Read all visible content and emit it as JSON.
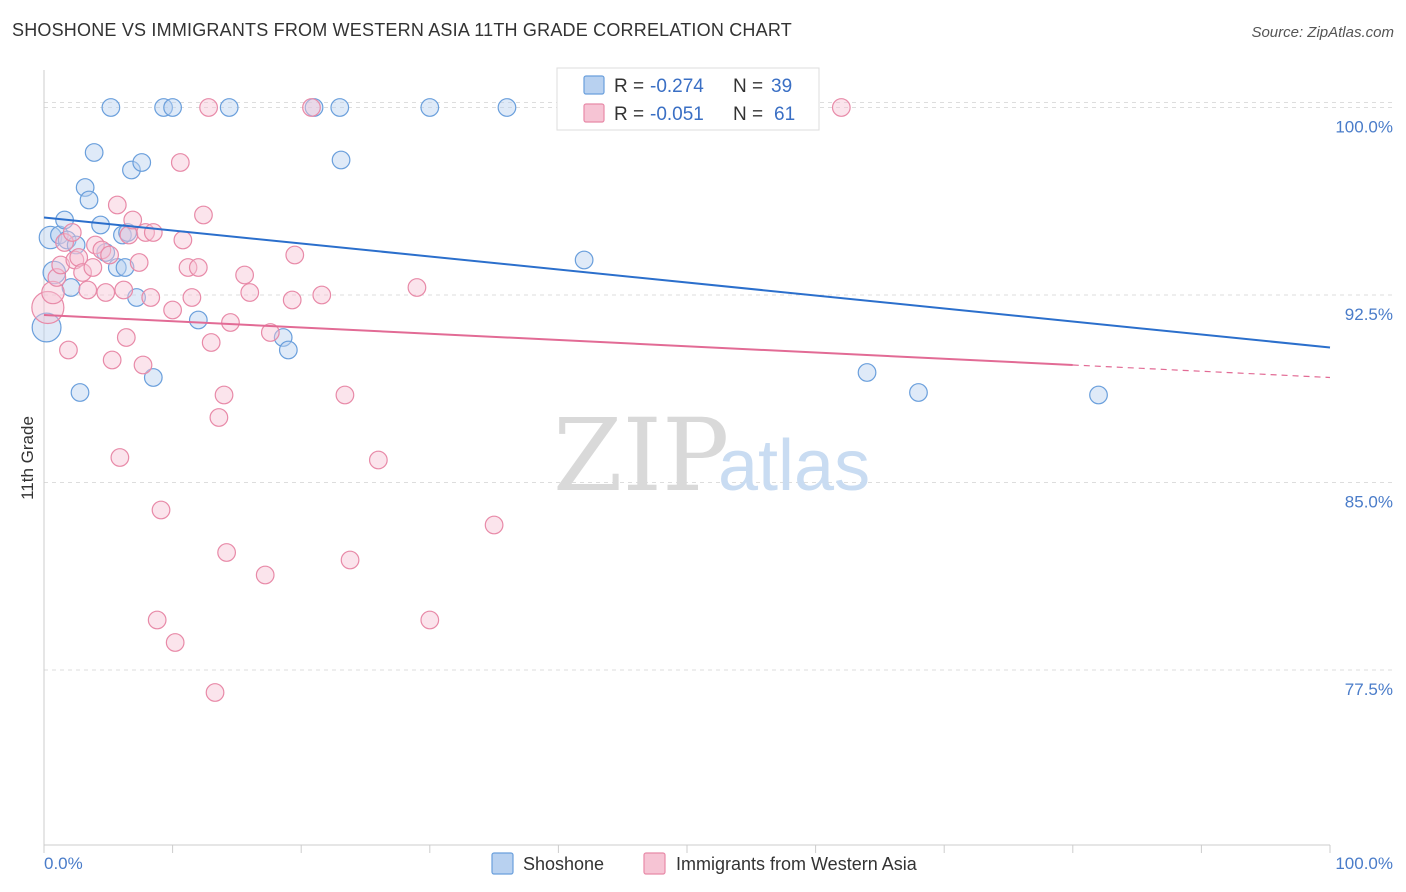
{
  "title": "SHOSHONE VS IMMIGRANTS FROM WESTERN ASIA 11TH GRADE CORRELATION CHART",
  "source": "Source: ZipAtlas.com",
  "watermark": {
    "zip": "ZIP",
    "atlas": "atlas"
  },
  "colors": {
    "blue": "#6a9fdc",
    "blue_fill": "#b8d1f0",
    "blue_line": "#2b6fcc",
    "pink": "#e88aa8",
    "pink_fill": "#f6c4d4",
    "pink_line": "#e26b95",
    "axis_text": "#4a7cc9",
    "grid": "#dddddd"
  },
  "legend": {
    "rows": [
      {
        "r_label": "R =",
        "r_value": "-0.274",
        "n_label": "N =",
        "n_value": "39"
      },
      {
        "r_label": "R =",
        "r_value": "-0.051",
        "n_label": "N =",
        "n_value": "61"
      }
    ]
  },
  "chart_data": {
    "type": "scatter",
    "title": "SHOSHONE VS IMMIGRANTS FROM WESTERN ASIA 11TH GRADE CORRELATION CHART",
    "xlabel": "",
    "ylabel": "11th Grade",
    "xlim": [
      0,
      100
    ],
    "ylim": [
      70.5,
      101.5
    ],
    "x_ticks": [
      "0.0%",
      "100.0%"
    ],
    "y_ticks": [
      {
        "value": 100.0,
        "label": "100.0%"
      },
      {
        "value": 92.5,
        "label": "92.5%"
      },
      {
        "value": 85.0,
        "label": "85.0%"
      },
      {
        "value": 77.5,
        "label": "77.5%"
      }
    ],
    "grid": true,
    "legend_position": "top-center",
    "series": [
      {
        "name": "Shoshone",
        "color": "#6a9fdc",
        "trend": {
          "x0": 0,
          "y0": 95.6,
          "x1": 100,
          "y1": 90.4
        },
        "points": [
          [
            0.2,
            91.2,
            18
          ],
          [
            0.5,
            94.8,
            14
          ],
          [
            0.8,
            93.4,
            14
          ],
          [
            1.2,
            94.9,
            11
          ],
          [
            1.6,
            95.5,
            11
          ],
          [
            1.8,
            94.7,
            11
          ],
          [
            2.1,
            92.8,
            11
          ],
          [
            2.5,
            94.5,
            11
          ],
          [
            2.8,
            88.6,
            11
          ],
          [
            3.2,
            96.8,
            11
          ],
          [
            3.5,
            96.3,
            11
          ],
          [
            3.9,
            98.2,
            11
          ],
          [
            4.4,
            95.3,
            11
          ],
          [
            4.8,
            94.2,
            11
          ],
          [
            5.2,
            100.0,
            11
          ],
          [
            5.7,
            93.6,
            11
          ],
          [
            6.1,
            94.9,
            11
          ],
          [
            6.3,
            93.6,
            11
          ],
          [
            6.5,
            95.0,
            11
          ],
          [
            6.8,
            97.5,
            11
          ],
          [
            7.2,
            92.4,
            11
          ],
          [
            7.6,
            97.8,
            11
          ],
          [
            8.5,
            89.2,
            11
          ],
          [
            9.3,
            100.0,
            11
          ],
          [
            10.0,
            100.0,
            11
          ],
          [
            12.0,
            91.5,
            11
          ],
          [
            14.4,
            100.0,
            11
          ],
          [
            18.6,
            90.8,
            11
          ],
          [
            19.0,
            90.3,
            11
          ],
          [
            21.0,
            100.0,
            11
          ],
          [
            23.0,
            100.0,
            11
          ],
          [
            23.1,
            97.9,
            11
          ],
          [
            30.0,
            100.0,
            11
          ],
          [
            36.0,
            100.0,
            11
          ],
          [
            42.0,
            93.9,
            11
          ],
          [
            64.0,
            89.4,
            11
          ],
          [
            68.0,
            88.6,
            11
          ],
          [
            82.0,
            88.5,
            11
          ]
        ]
      },
      {
        "name": "Immigrants from Western Asia",
        "color": "#e88aa8",
        "trend": {
          "x0": 0,
          "y0": 91.7,
          "x1": 80,
          "y1": 89.7,
          "dash_x1": 100,
          "dash_y1": 89.2
        },
        "points": [
          [
            0.3,
            92.0,
            20
          ],
          [
            0.7,
            92.6,
            14
          ],
          [
            1.0,
            93.2,
            11
          ],
          [
            1.3,
            93.7,
            11
          ],
          [
            1.6,
            94.6,
            11
          ],
          [
            1.9,
            90.3,
            11
          ],
          [
            2.2,
            95.0,
            11
          ],
          [
            2.4,
            93.9,
            11
          ],
          [
            2.7,
            94.0,
            11
          ],
          [
            3.0,
            93.4,
            11
          ],
          [
            3.4,
            92.7,
            11
          ],
          [
            3.8,
            93.6,
            11
          ],
          [
            4.0,
            94.5,
            11
          ],
          [
            4.5,
            94.3,
            11
          ],
          [
            4.8,
            92.6,
            11
          ],
          [
            5.1,
            94.1,
            11
          ],
          [
            5.3,
            89.9,
            11
          ],
          [
            5.7,
            96.1,
            11
          ],
          [
            5.9,
            86.0,
            11
          ],
          [
            6.2,
            92.7,
            11
          ],
          [
            6.4,
            90.8,
            11
          ],
          [
            6.6,
            94.9,
            11
          ],
          [
            6.9,
            95.5,
            11
          ],
          [
            7.4,
            93.8,
            11
          ],
          [
            7.7,
            89.7,
            11
          ],
          [
            7.9,
            95.0,
            11
          ],
          [
            8.3,
            92.4,
            11
          ],
          [
            8.5,
            95.0,
            11
          ],
          [
            8.8,
            79.5,
            11
          ],
          [
            9.1,
            83.9,
            11
          ],
          [
            10.0,
            91.9,
            11
          ],
          [
            10.2,
            78.6,
            11
          ],
          [
            10.6,
            97.8,
            11
          ],
          [
            10.8,
            94.7,
            11
          ],
          [
            11.2,
            93.6,
            11
          ],
          [
            11.5,
            92.4,
            11
          ],
          [
            12.0,
            93.6,
            11
          ],
          [
            12.4,
            95.7,
            11
          ],
          [
            12.8,
            100.0,
            11
          ],
          [
            13.0,
            90.6,
            11
          ],
          [
            13.3,
            76.6,
            11
          ],
          [
            13.6,
            87.6,
            11
          ],
          [
            14.0,
            88.5,
            11
          ],
          [
            14.2,
            82.2,
            11
          ],
          [
            14.5,
            91.4,
            11
          ],
          [
            15.6,
            93.3,
            11
          ],
          [
            16.0,
            92.6,
            11
          ],
          [
            17.2,
            81.3,
            11
          ],
          [
            17.6,
            91.0,
            11
          ],
          [
            19.3,
            92.3,
            11
          ],
          [
            19.5,
            94.1,
            11
          ],
          [
            20.8,
            100.0,
            11
          ],
          [
            21.6,
            92.5,
            11
          ],
          [
            23.4,
            88.5,
            11
          ],
          [
            23.8,
            81.9,
            11
          ],
          [
            26.0,
            85.9,
            11
          ],
          [
            29.0,
            92.8,
            11
          ],
          [
            30.0,
            79.5,
            11
          ],
          [
            35.0,
            83.3,
            11
          ],
          [
            62.0,
            100.0,
            11
          ]
        ]
      }
    ]
  }
}
